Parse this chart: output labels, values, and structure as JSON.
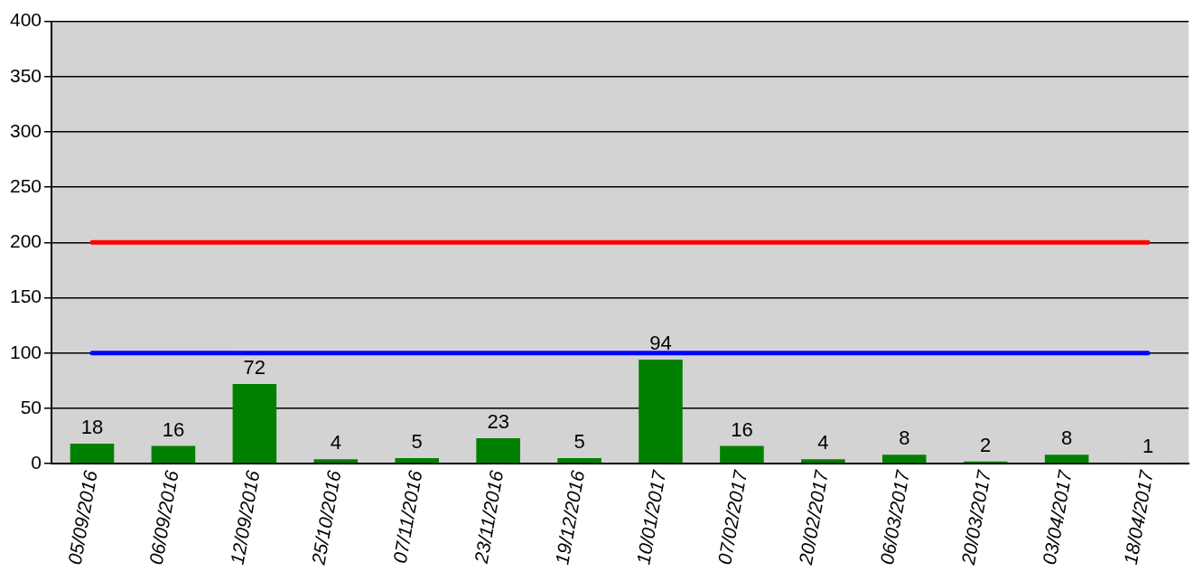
{
  "chart_data": {
    "type": "bar",
    "categories": [
      "05/09/2016",
      "06/09/2016",
      "12/09/2016",
      "25/10/2016",
      "07/11/2016",
      "23/11/2016",
      "19/12/2016",
      "10/01/2017",
      "07/02/2017",
      "20/02/2017",
      "06/03/2017",
      "20/03/2017",
      "03/04/2017",
      "18/04/2017"
    ],
    "series": [
      {
        "color": "#008000",
        "values": [
          18,
          16,
          72,
          4,
          5,
          23,
          5,
          94,
          16,
          4,
          8,
          2,
          8,
          1
        ],
        "value_labels": [
          "18",
          "16",
          "72",
          "4",
          "5",
          "23",
          "5",
          "94",
          "16",
          "4",
          "8",
          "2",
          "8",
          "1"
        ]
      },
      {
        "type": "line",
        "color": "#ff0000",
        "values": [
          200,
          200,
          200,
          200,
          200,
          200,
          200,
          200,
          200,
          200,
          200,
          200,
          200,
          200
        ]
      },
      {
        "type": "line",
        "color": "#0000ff",
        "values": [
          100,
          100,
          100,
          100,
          100,
          100,
          100,
          100,
          100,
          100,
          100,
          100,
          100,
          100
        ]
      }
    ],
    "ylim": [
      0,
      400
    ],
    "yticks": [
      0,
      50,
      100,
      150,
      200,
      250,
      300,
      350,
      400
    ],
    "grid": "y",
    "legend": false,
    "marker": "none",
    "line_style": "solid"
  }
}
